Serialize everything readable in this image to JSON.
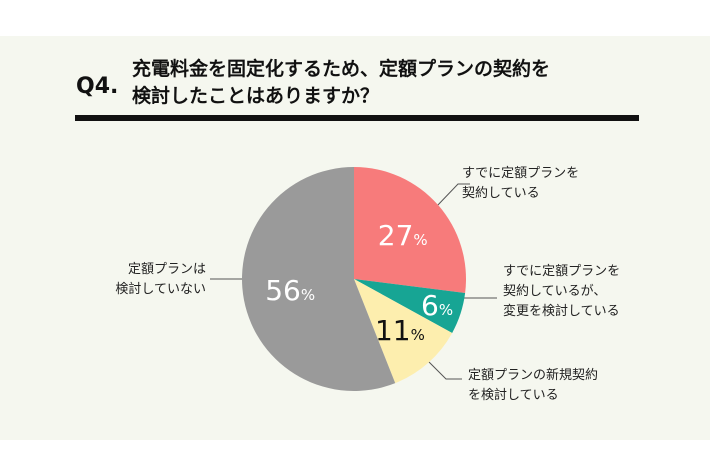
{
  "header": {
    "question_number": "Q4.",
    "title": "充電料金を固定化するため、定額プランの契約を\n検討したことはありますか？"
  },
  "chart_data": {
    "type": "pie",
    "title": "充電料金を固定化するため、定額プランの契約を検討したことはありますか？",
    "unit": "%",
    "slices": [
      {
        "label": "すでに定額プランを\n契約している",
        "value": 27,
        "color": "#f77b7b",
        "text_color": "#ffffff"
      },
      {
        "label": "すでに定額プランを\n契約しているが、\n変更を検討している",
        "value": 6,
        "color": "#17a594",
        "text_color": "#ffffff"
      },
      {
        "label": "定額プランの新規契約\nを検討している",
        "value": 11,
        "color": "#fdeeae",
        "text_color": "#111111"
      },
      {
        "label": "定額プランは\n検討していない",
        "value": 56,
        "color": "#9a9a9a",
        "text_color": "#ffffff"
      }
    ]
  }
}
